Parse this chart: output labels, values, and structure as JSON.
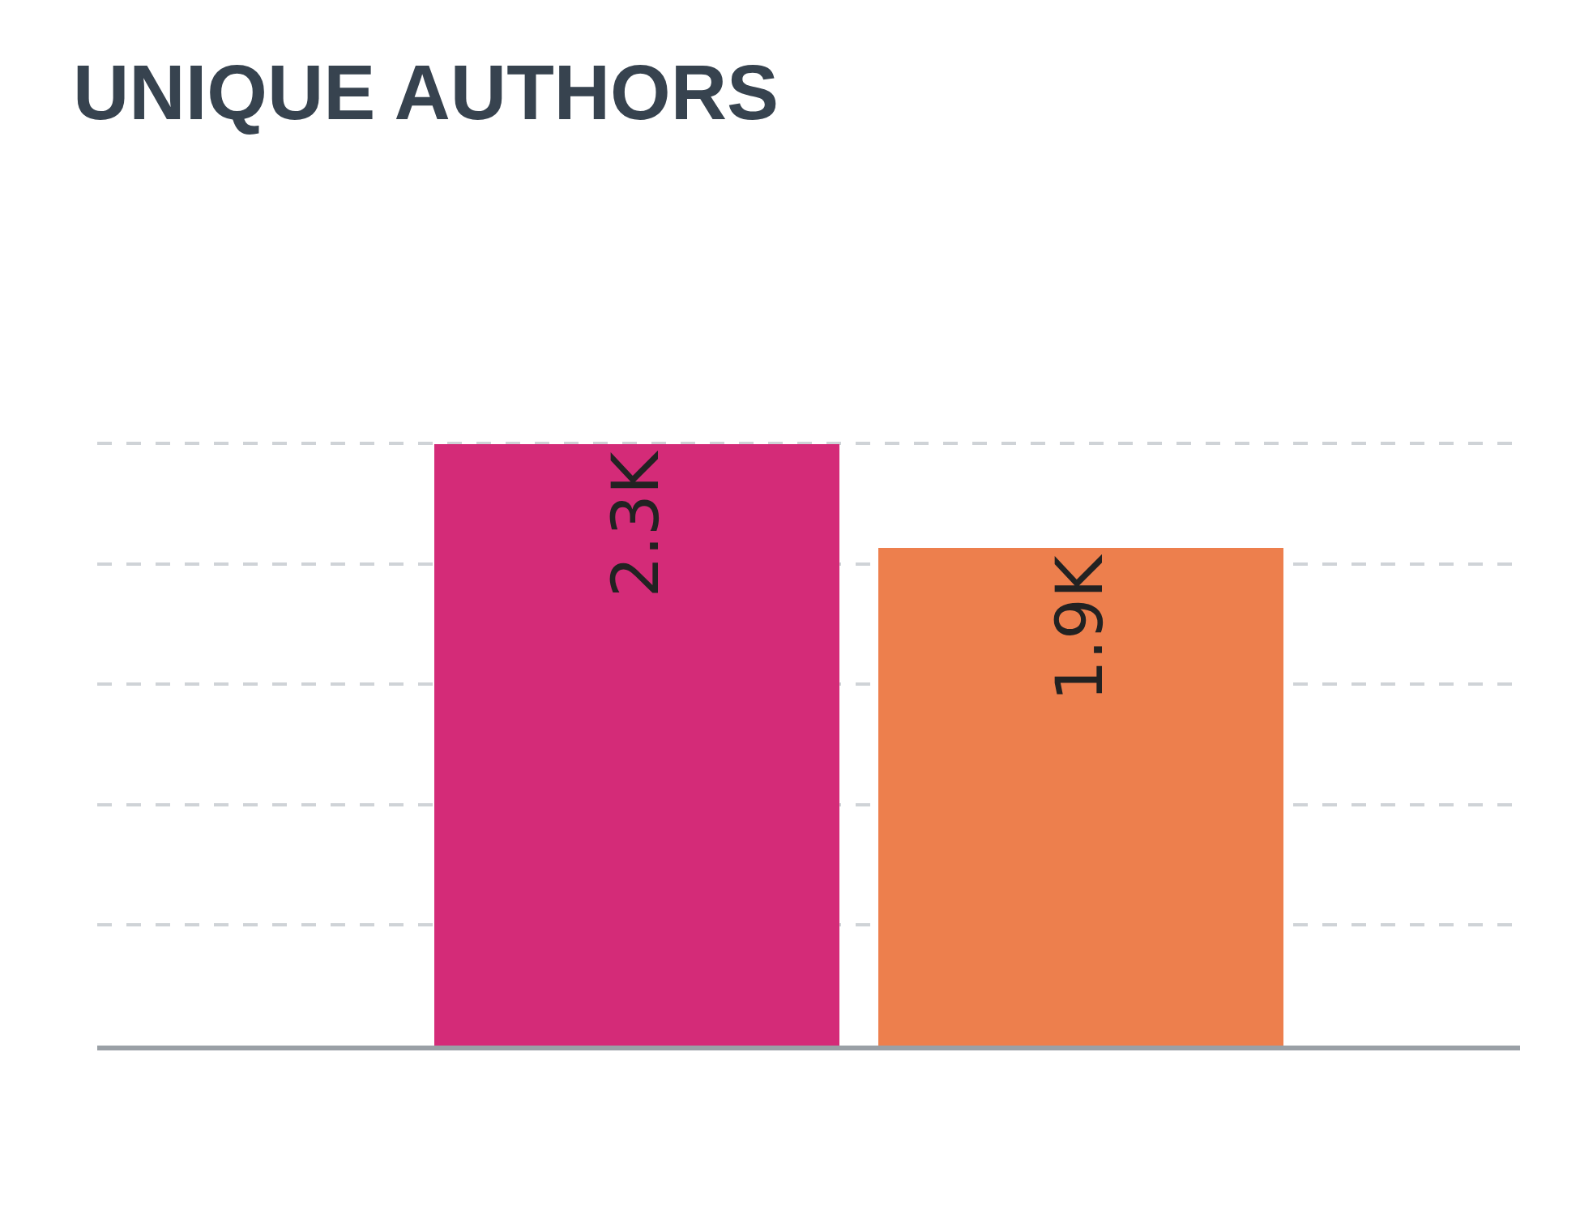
{
  "chart_data": {
    "type": "bar",
    "title": "UNIQUE AUTHORS",
    "categories": [
      null,
      null
    ],
    "values": [
      2300,
      1900
    ],
    "colors": [
      "#d42b78",
      "#ed7f4d"
    ],
    "value_labels": [
      "2.3K",
      "1.9K"
    ],
    "yticks": [
      {
        "value": 0,
        "label": null
      },
      {
        "value": 460,
        "label": null
      },
      {
        "value": 920,
        "label": null
      },
      {
        "value": 1380,
        "label": null
      },
      {
        "value": 1840,
        "label": null
      },
      {
        "value": 2300,
        "label": null
      }
    ],
    "grid": "y",
    "line_style": "dashed",
    "legend": false
  }
}
